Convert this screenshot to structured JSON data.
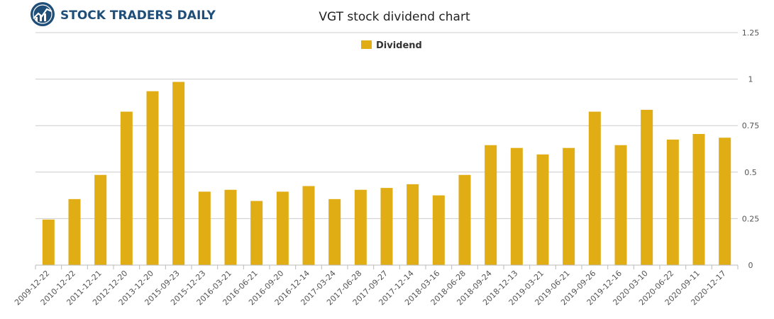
{
  "brand": {
    "name": "STOCK TRADERS DAILY"
  },
  "colors": {
    "bar": "#e0ad15",
    "grid": "#cccccc",
    "axis_text": "#555555",
    "title_text": "#222222",
    "logo_blue": "#1f4e79"
  },
  "chart_data": {
    "type": "bar",
    "title": "VGT stock dividend chart",
    "legend": {
      "position": "top-center"
    },
    "xlabel": "",
    "ylabel": "",
    "ylim": [
      0,
      1.25
    ],
    "y_ticks": [
      0,
      0.25,
      0.5,
      0.75,
      1,
      1.25
    ],
    "y_tick_labels": [
      "0",
      "0.25",
      "0.5",
      "0.75",
      "1",
      "1.25"
    ],
    "y_axis_side": "right",
    "grid": true,
    "categories": [
      "2009-12-22",
      "2010-12-22",
      "2011-12-21",
      "2012-12-20",
      "2013-12-20",
      "2015-09-23",
      "2015-12-23",
      "2016-03-21",
      "2016-06-21",
      "2016-09-20",
      "2016-12-14",
      "2017-03-24",
      "2017-06-28",
      "2017-09-27",
      "2017-12-14",
      "2018-03-16",
      "2018-06-28",
      "2018-09-24",
      "2018-12-13",
      "2019-03-21",
      "2019-06-21",
      "2019-09-26",
      "2019-12-16",
      "2020-03-10",
      "2020-06-22",
      "2020-09-11",
      "2020-12-17"
    ],
    "series": [
      {
        "name": "Dividend",
        "values": [
          0.245,
          0.355,
          0.485,
          0.825,
          0.935,
          0.985,
          0.395,
          0.405,
          0.345,
          0.395,
          0.425,
          0.355,
          0.405,
          0.415,
          0.435,
          0.375,
          0.485,
          0.645,
          0.63,
          0.595,
          0.63,
          0.825,
          0.645,
          0.835,
          0.675,
          0.705,
          0.685
        ]
      }
    ]
  }
}
